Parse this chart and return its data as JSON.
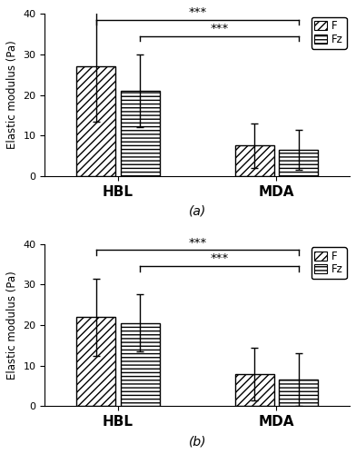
{
  "panel_a": {
    "HBL_F": {
      "mean": 27.0,
      "err": 13.5
    },
    "HBL_Fz": {
      "mean": 21.0,
      "err": 9.0
    },
    "MDA_F": {
      "mean": 7.5,
      "err": 5.5
    },
    "MDA_Fz": {
      "mean": 6.5,
      "err": 5.0
    }
  },
  "panel_b": {
    "HBL_F": {
      "mean": 22.0,
      "err": 9.5
    },
    "HBL_Fz": {
      "mean": 20.5,
      "err": 7.0
    },
    "MDA_F": {
      "mean": 8.0,
      "err": 6.5
    },
    "MDA_Fz": {
      "mean": 6.5,
      "err": 6.5
    }
  },
  "ylim": [
    0,
    40
  ],
  "yticks": [
    0,
    10,
    20,
    30,
    40
  ],
  "ylabel": "Elastic modulus (Pa)",
  "xlabel_groups": [
    "HBL",
    "MDA"
  ],
  "label_a": "(a)",
  "label_b": "(b)",
  "sig_label": "***",
  "bar_width": 0.32,
  "group_centers": [
    0.85,
    2.15
  ],
  "hatch_F": "////",
  "hatch_Fz": "----",
  "bar_color": "white",
  "bar_edgecolor": "black"
}
